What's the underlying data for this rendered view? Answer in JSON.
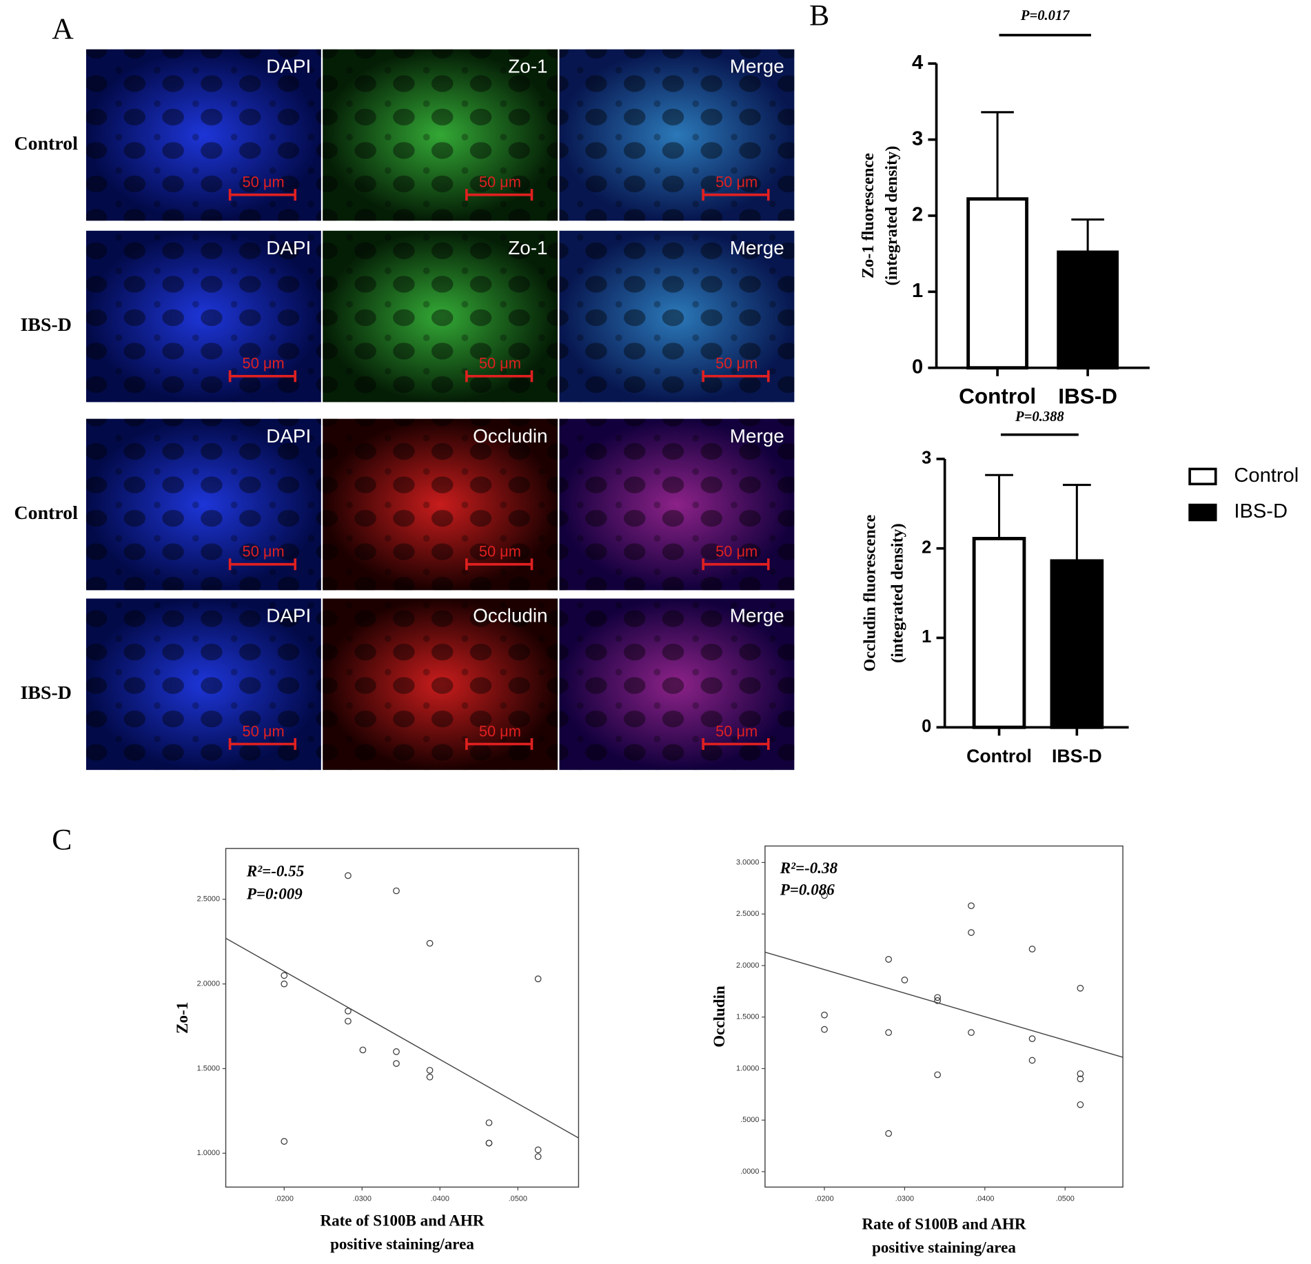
{
  "figure": {
    "panels": [
      "A",
      "B",
      "C"
    ],
    "scale_bar": "50 μm",
    "rows": [
      {
        "label": "Control",
        "channels": [
          "DAPI",
          "Zo-1",
          "Merge"
        ]
      },
      {
        "label": "IBS-D",
        "channels": [
          "DAPI",
          "Zo-1",
          "Merge"
        ]
      },
      {
        "label": "Control",
        "channels": [
          "DAPI",
          "Occludin",
          "Merge"
        ]
      },
      {
        "label": "IBS-D",
        "channels": [
          "DAPI",
          "Occludin",
          "Merge"
        ]
      }
    ]
  },
  "chart_data": [
    {
      "type": "bar",
      "annotation": "P=0.017",
      "ylabel": [
        "Zo-1  fluorescence",
        "(integrated  density)"
      ],
      "categories": [
        "Control",
        "IBS-D"
      ],
      "values": [
        2.22,
        1.52
      ],
      "errors": [
        1.14,
        0.43
      ],
      "colors": [
        "#ffffff",
        "#000000"
      ],
      "ylim": [
        0,
        4
      ],
      "yticks": [
        0,
        1,
        2,
        3,
        4
      ]
    },
    {
      "type": "bar",
      "annotation": "P=0.388",
      "ylabel": [
        "Occludin  fluorescence",
        "(integrated  density)"
      ],
      "categories": [
        "Control",
        "IBS-D"
      ],
      "values": [
        2.11,
        1.86
      ],
      "errors": [
        0.71,
        0.85
      ],
      "colors": [
        "#ffffff",
        "#000000"
      ],
      "ylim": [
        0,
        3
      ],
      "yticks": [
        0,
        1,
        2,
        3
      ],
      "legend": "right"
    },
    {
      "type": "scatter",
      "annotations": [
        "R²=-0.55",
        "P=0:009"
      ],
      "xlabel": [
        "Rate of S100B and AHR",
        "positive staining/area"
      ],
      "ylabel": "Zo-1",
      "x": [
        0.02,
        0.02,
        0.02,
        0.0282,
        0.0282,
        0.0282,
        0.0301,
        0.0344,
        0.0344,
        0.0344,
        0.0387,
        0.0387,
        0.0387,
        0.0463,
        0.0463,
        0.0463,
        0.0526,
        0.0526,
        0.0526
      ],
      "y": [
        2.05,
        2.0,
        1.07,
        2.64,
        1.84,
        1.78,
        1.61,
        2.55,
        1.6,
        1.53,
        2.24,
        1.49,
        1.45,
        1.18,
        1.06,
        1.06,
        2.03,
        1.02,
        0.98
      ],
      "fit": {
        "x": [
          0.0125,
          0.0578
        ],
        "y": [
          2.27,
          1.09
        ]
      },
      "xlim": [
        0.0125,
        0.0578
      ],
      "ylim": [
        0.8,
        2.8
      ],
      "xticks": [
        {
          "value": 0.02,
          "label": ".0200"
        },
        {
          "value": 0.03,
          "label": ".0300"
        },
        {
          "value": 0.04,
          "label": ".0400"
        },
        {
          "value": 0.05,
          "label": ".0500"
        }
      ],
      "yticks": [
        {
          "value": 1,
          "label": "1.0000"
        },
        {
          "value": 1.5,
          "label": "1.5000"
        },
        {
          "value": 2,
          "label": "2.0000"
        },
        {
          "value": 2.5,
          "label": "2.5000"
        }
      ]
    },
    {
      "type": "scatter",
      "annotations": [
        "R²=-0.38",
        "P=0.086"
      ],
      "xlabel": [
        "Rate of S100B and AHR",
        "positive staining/area"
      ],
      "ylabel": "Occludin",
      "x": [
        0.02,
        0.02,
        0.02,
        0.028,
        0.028,
        0.028,
        0.03,
        0.0341,
        0.0341,
        0.0341,
        0.0383,
        0.0383,
        0.0383,
        0.0459,
        0.0459,
        0.0459,
        0.0519,
        0.0519,
        0.0519,
        0.0519
      ],
      "y": [
        2.68,
        1.52,
        1.38,
        2.06,
        1.35,
        0.37,
        1.86,
        1.69,
        1.66,
        0.94,
        2.58,
        2.32,
        1.35,
        2.16,
        1.29,
        1.08,
        1.78,
        0.95,
        0.9,
        0.65
      ],
      "fit": {
        "x": [
          0.0126,
          0.0572
        ],
        "y": [
          2.13,
          1.11
        ]
      },
      "xlim": [
        0.0126,
        0.0572
      ],
      "ylim": [
        -0.15,
        3.16
      ],
      "xticks": [
        {
          "value": 0.02,
          "label": ".0200"
        },
        {
          "value": 0.03,
          "label": ".0300"
        },
        {
          "value": 0.04,
          "label": ".0400"
        },
        {
          "value": 0.05,
          "label": ".0500"
        }
      ],
      "yticks": [
        {
          "value": 0,
          "label": ".0000"
        },
        {
          "value": 0.5,
          "label": ".5000"
        },
        {
          "value": 1,
          "label": "1.0000"
        },
        {
          "value": 1.5,
          "label": "1.5000"
        },
        {
          "value": 2,
          "label": "2.0000"
        },
        {
          "value": 2.5,
          "label": "2.5000"
        },
        {
          "value": 3,
          "label": "3.0000"
        }
      ]
    }
  ]
}
